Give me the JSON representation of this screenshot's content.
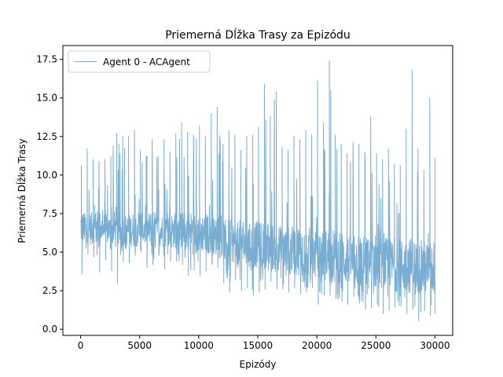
{
  "colors": {
    "series": "#1f77b4",
    "axes": "#000000",
    "background": "#ffffff"
  },
  "chart_data": {
    "type": "line",
    "title": "Priemerná Dĺžka Trasy za Epizódu",
    "xlabel": "Epizódy",
    "ylabel": "Priemerná Dĺžka Trasy",
    "xlim": [
      -1500,
      31500
    ],
    "ylim": [
      -0.4,
      18.4
    ],
    "xticks": [
      0,
      5000,
      10000,
      15000,
      20000,
      25000,
      30000
    ],
    "xtick_labels": [
      "0",
      "5000",
      "10000",
      "15000",
      "20000",
      "25000",
      "30000"
    ],
    "yticks": [
      0,
      2.5,
      5,
      7.5,
      10,
      12.5,
      15,
      17.5
    ],
    "ytick_labels": [
      "0.0",
      "2.5",
      "5.0",
      "7.5",
      "10.0",
      "12.5",
      "15.0",
      "17.5"
    ],
    "grid": false,
    "legend": {
      "position": "top-left",
      "entries": [
        "Agent 0 - ACAgent"
      ]
    },
    "series_style": {
      "alpha": 0.6,
      "linewidth": 1.0
    },
    "envelope": {
      "x": [
        0,
        500,
        1000,
        1500,
        2000,
        2500,
        3000,
        3500,
        4000,
        4500,
        5000,
        5500,
        6000,
        6500,
        7000,
        7500,
        8000,
        8500,
        9000,
        9500,
        10000,
        10500,
        11000,
        11500,
        12000,
        12500,
        13000,
        13500,
        14000,
        14500,
        15000,
        15500,
        16000,
        16500,
        17000,
        17500,
        18000,
        18500,
        19000,
        19500,
        20000,
        20500,
        21000,
        21500,
        22000,
        22500,
        23000,
        23500,
        24000,
        24500,
        25000,
        25500,
        26000,
        26500,
        27000,
        27500,
        28000,
        28500,
        29000,
        29500,
        30000
      ],
      "upper": [
        10.6,
        11.7,
        11.0,
        10.9,
        11.0,
        11.2,
        12.7,
        12.5,
        12.5,
        12.9,
        11.6,
        11.2,
        12.3,
        11.2,
        12.3,
        11.5,
        12.7,
        13.4,
        12.8,
        12.6,
        13.2,
        12.5,
        14.0,
        14.4,
        12.0,
        12.9,
        12.6,
        11.6,
        12.5,
        12.6,
        13.1,
        15.9,
        13.8,
        15.4,
        11.8,
        11.6,
        12.5,
        12.3,
        12.9,
        12.6,
        16.1,
        13.4,
        17.4,
        12.6,
        12.0,
        11.4,
        12.1,
        12.0,
        11.5,
        13.8,
        11.4,
        11.0,
        11.7,
        10.7,
        10.6,
        13.0,
        16.8,
        11.7,
        10.3,
        15.0,
        11.1
      ],
      "lower": [
        3.6,
        4.9,
        4.7,
        3.7,
        4.5,
        3.8,
        3.0,
        4.4,
        4.3,
        4.8,
        5.0,
        4.0,
        4.2,
        4.8,
        3.9,
        4.4,
        4.4,
        4.2,
        3.5,
        3.8,
        3.5,
        3.8,
        4.2,
        4.0,
        3.0,
        2.4,
        3.2,
        2.5,
        2.7,
        2.2,
        2.4,
        2.6,
        3.1,
        2.6,
        2.6,
        2.4,
        2.7,
        2.3,
        2.4,
        2.7,
        1.6,
        2.2,
        2.2,
        2.0,
        1.8,
        1.6,
        2.1,
        1.7,
        1.3,
        1.4,
        1.6,
        1.0,
        1.2,
        1.4,
        1.5,
        1.0,
        1.3,
        0.5,
        1.2,
        0.9,
        1.0
      ],
      "typical_high": [
        7.8,
        7.5,
        7.6,
        7.7,
        7.5,
        7.4,
        7.8,
        7.5,
        7.4,
        7.6,
        7.8,
        7.5,
        7.7,
        7.6,
        7.4,
        7.5,
        7.6,
        7.6,
        7.7,
        7.6,
        7.4,
        7.6,
        7.3,
        7.2,
        7.0,
        7.2,
        7.0,
        7.1,
        6.8,
        6.9,
        7.0,
        6.9,
        6.9,
        6.8,
        6.7,
        6.5,
        6.7,
        6.8,
        6.6,
        6.6,
        6.4,
        6.5,
        6.5,
        6.6,
        6.3,
        6.1,
        6.0,
        6.2,
        6.0,
        6.1,
        6.2,
        6.1,
        5.9,
        5.8,
        5.9,
        5.8,
        6.0,
        5.7,
        5.8,
        5.7,
        5.8
      ],
      "typical_low": [
        5.5,
        5.6,
        5.4,
        5.4,
        5.5,
        5.5,
        5.2,
        5.4,
        5.4,
        5.3,
        5.5,
        5.4,
        5.3,
        5.4,
        5.3,
        5.3,
        5.2,
        5.2,
        5.2,
        5.1,
        5.0,
        5.0,
        4.9,
        4.8,
        4.4,
        4.3,
        4.3,
        4.1,
        4.1,
        4.0,
        4.0,
        3.9,
        3.9,
        3.8,
        3.8,
        3.6,
        3.6,
        3.5,
        3.5,
        3.4,
        3.2,
        3.2,
        3.1,
        3.1,
        3.0,
        2.9,
        2.9,
        2.8,
        2.7,
        2.7,
        2.6,
        2.6,
        2.5,
        2.5,
        2.4,
        2.4,
        2.3,
        2.3,
        2.2,
        2.2,
        2.1
      ]
    }
  }
}
